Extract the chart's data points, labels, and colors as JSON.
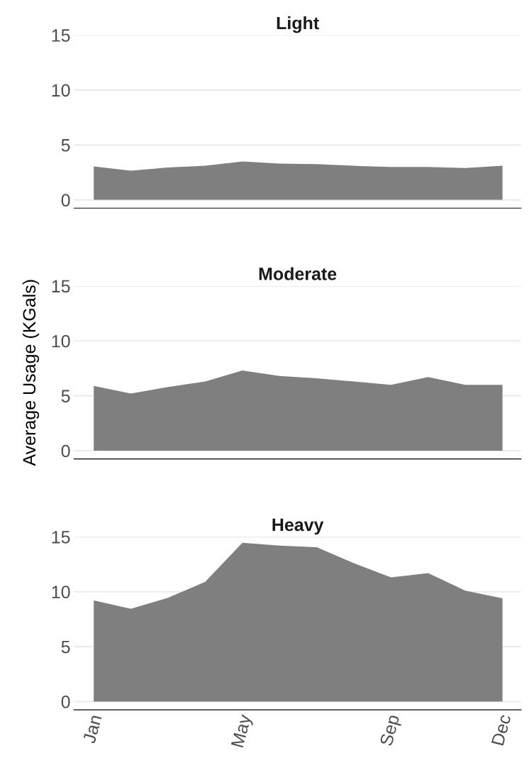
{
  "chart_data": [
    {
      "type": "area",
      "title": "Light",
      "categories": [
        null,
        null,
        null,
        null,
        null,
        null,
        null,
        null,
        null,
        null,
        null,
        null
      ],
      "ylim": [
        -0.75,
        15
      ],
      "yticks": [
        0,
        5,
        10,
        15
      ],
      "grid": "y",
      "series": [
        {
          "color": "#7f7f7f",
          "values": [
            3.05,
            2.65,
            2.95,
            3.1,
            3.5,
            3.3,
            3.25,
            3.1,
            3.0,
            3.0,
            2.9,
            3.1
          ]
        }
      ]
    },
    {
      "type": "area",
      "title": "Moderate",
      "ylabel": "Average Usage (KGals)",
      "categories": [
        null,
        null,
        null,
        null,
        null,
        null,
        null,
        null,
        null,
        null,
        null,
        null
      ],
      "ylim": [
        -0.75,
        15
      ],
      "yticks": [
        0,
        5,
        10,
        15
      ],
      "grid": "y",
      "series": [
        {
          "color": "#7f7f7f",
          "values": [
            5.9,
            5.2,
            5.8,
            6.3,
            7.3,
            6.8,
            6.6,
            6.3,
            6.0,
            6.7,
            6.0,
            6.0
          ]
        }
      ]
    },
    {
      "type": "area",
      "title": "Heavy",
      "categories": [
        "Jan",
        null,
        null,
        null,
        "May",
        null,
        null,
        null,
        "Sep",
        null,
        null,
        "Dec"
      ],
      "ylim": [
        -0.75,
        15
      ],
      "yticks": [
        0,
        5,
        10,
        15
      ],
      "grid": "y",
      "series": [
        {
          "color": "#7f7f7f",
          "values": [
            9.2,
            8.45,
            9.45,
            10.9,
            14.45,
            14.2,
            14.05,
            12.6,
            11.3,
            11.7,
            10.1,
            9.4
          ]
        }
      ]
    }
  ]
}
